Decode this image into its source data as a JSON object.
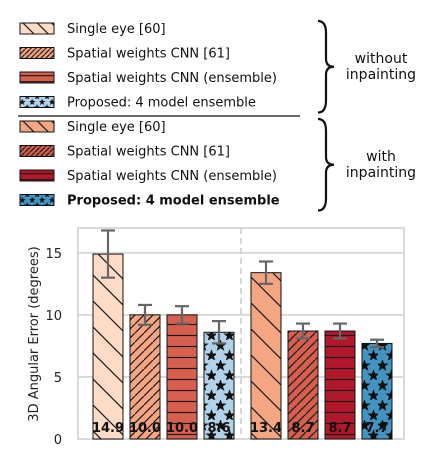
{
  "chart_data": {
    "type": "bar",
    "ylabel": "3D Angular Error (degrees)",
    "ylim": [
      0,
      17
    ],
    "yticks": [
      0,
      5,
      10,
      15
    ],
    "grid": true,
    "legend_placement": "top",
    "groups": [
      {
        "name_lines": [
          "without",
          "inpainting"
        ],
        "series": [
          {
            "name": "Single eye [60]",
            "value": 14.9,
            "label": "14.9",
            "error": 1.9,
            "color": "#fddbc7",
            "pattern": "backslash",
            "bold": false
          },
          {
            "name": "Spatial weights CNN [61]",
            "value": 10.0,
            "label": "10.0",
            "error": 0.8,
            "color": "#f4a582",
            "pattern": "slash",
            "bold": false
          },
          {
            "name": "Spatial weights CNN (ensemble)",
            "value": 10.0,
            "label": "10.0",
            "error": 0.7,
            "color": "#d6604d",
            "pattern": "hline",
            "bold": false
          },
          {
            "name": "Proposed: 4 model ensemble",
            "value": 8.6,
            "label": "8.6",
            "error": 0.9,
            "color": "#b2d2ea",
            "pattern": "star",
            "bold": false
          }
        ]
      },
      {
        "name_lines": [
          "with",
          "inpainting"
        ],
        "series": [
          {
            "name": "Single eye [60]",
            "value": 13.4,
            "label": "13.4",
            "error": 0.9,
            "color": "#f4a582",
            "pattern": "backslash",
            "bold": false
          },
          {
            "name": "Spatial weights CNN [61]",
            "value": 8.7,
            "label": "8.7",
            "error": 0.6,
            "color": "#d6604d",
            "pattern": "slash",
            "bold": false
          },
          {
            "name": "Spatial weights CNN (ensemble)",
            "value": 8.7,
            "label": "8.7",
            "error": 0.6,
            "color": "#b2182b",
            "pattern": "hline",
            "bold": false
          },
          {
            "name": "Proposed: 4 model ensemble",
            "value": 7.7,
            "label": "7.7",
            "error": 0.3,
            "color": "#4393c3",
            "pattern": "star",
            "bold": true
          }
        ]
      }
    ]
  }
}
